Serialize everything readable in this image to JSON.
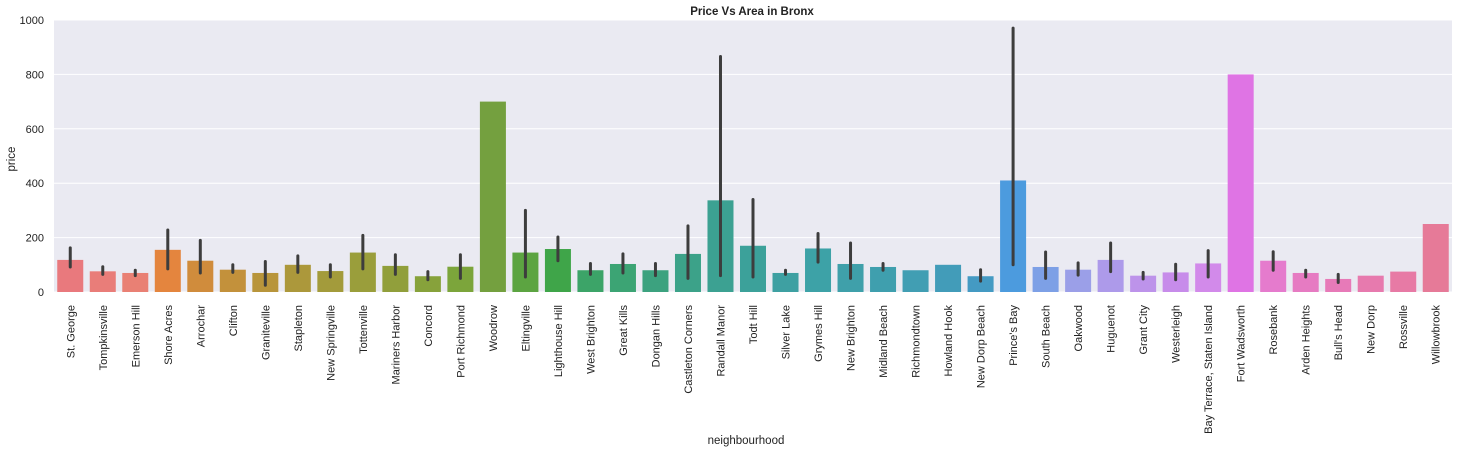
{
  "chart_data": {
    "type": "bar",
    "title": "Price Vs Area in Bronx",
    "xlabel": "neighbourhood",
    "ylabel": "price",
    "ylim": [
      0,
      1000
    ],
    "yticks": [
      0,
      200,
      400,
      600,
      800,
      1000
    ],
    "grid": true,
    "legend": "none",
    "error_bars": true,
    "background": "#eaeaf2",
    "error_bar_color": "#3d3d3d",
    "categories": [
      "St. George",
      "Tompkinsville",
      "Emerson Hill",
      "Shore Acres",
      "Arrochar",
      "Clifton",
      "Graniteville",
      "Stapleton",
      "New Springville",
      "Tottenville",
      "Mariners Harbor",
      "Concord",
      "Port Richmond",
      "Woodrow",
      "Eltingville",
      "Lighthouse Hill",
      "West Brighton",
      "Great Kills",
      "Dongan Hills",
      "Castleton Corners",
      "Randall Manor",
      "Todt Hill",
      "Silver Lake",
      "Grymes Hill",
      "New Brighton",
      "Midland Beach",
      "Richmondtown",
      "Howland Hook",
      "New Dorp Beach",
      "Prince's Bay",
      "South Beach",
      "Oakwood",
      "Huguenot",
      "Grant City",
      "Westerleigh",
      "Bay Terrace, Staten Island",
      "Fort Wadsworth",
      "Rosebank",
      "Arden Heights",
      "Bull's Head",
      "New Dorp",
      "Rossville",
      "Willowbrook"
    ],
    "values": [
      118,
      76,
      70,
      155,
      115,
      82,
      70,
      100,
      77,
      145,
      96,
      58,
      93,
      700,
      145,
      158,
      80,
      103,
      80,
      140,
      337,
      170,
      70,
      160,
      103,
      92,
      80,
      100,
      58,
      410,
      92,
      82,
      118,
      60,
      72,
      105,
      800,
      115,
      70,
      48,
      60,
      75,
      250
    ],
    "error_low": [
      92,
      65,
      60,
      85,
      70,
      72,
      25,
      72,
      55,
      85,
      65,
      45,
      50,
      null,
      55,
      115,
      65,
      70,
      60,
      50,
      60,
      55,
      65,
      110,
      50,
      80,
      null,
      null,
      40,
      100,
      50,
      62,
      75,
      48,
      45,
      55,
      null,
      80,
      55,
      35,
      null,
      null,
      null
    ],
    "error_high": [
      162,
      93,
      80,
      228,
      190,
      100,
      112,
      133,
      100,
      208,
      137,
      75,
      137,
      null,
      300,
      202,
      105,
      140,
      105,
      243,
      866,
      340,
      80,
      215,
      180,
      105,
      null,
      null,
      82,
      970,
      147,
      107,
      180,
      72,
      102,
      152,
      null,
      148,
      80,
      65,
      null,
      null,
      null
    ],
    "colors": [
      "#e9797d",
      "#e97d79",
      "#e98074",
      "#e4853e",
      "#d08c3c",
      "#c3913b",
      "#b8953b",
      "#ac983b",
      "#a39b3b",
      "#9a9e3b",
      "#919f3b",
      "#87a23b",
      "#7ca53b",
      "#74a03f",
      "#5ca441",
      "#3fa549",
      "#3ca468",
      "#3ca474",
      "#3ca27f",
      "#3ca289",
      "#3ca192",
      "#3ca19a",
      "#3ea0a2",
      "#3da2a7",
      "#3fa0aa",
      "#3f9fae",
      "#419eb3",
      "#429cb9",
      "#449ac3",
      "#4c9bde",
      "#7da0e6",
      "#9b9fe8",
      "#ad9aea",
      "#bd93ea",
      "#c78cea",
      "#d28aea",
      "#df74e4",
      "#e57bcd",
      "#e67bc2",
      "#e77ab8",
      "#e77aae",
      "#e77aa5",
      "#e67a98"
    ]
  }
}
